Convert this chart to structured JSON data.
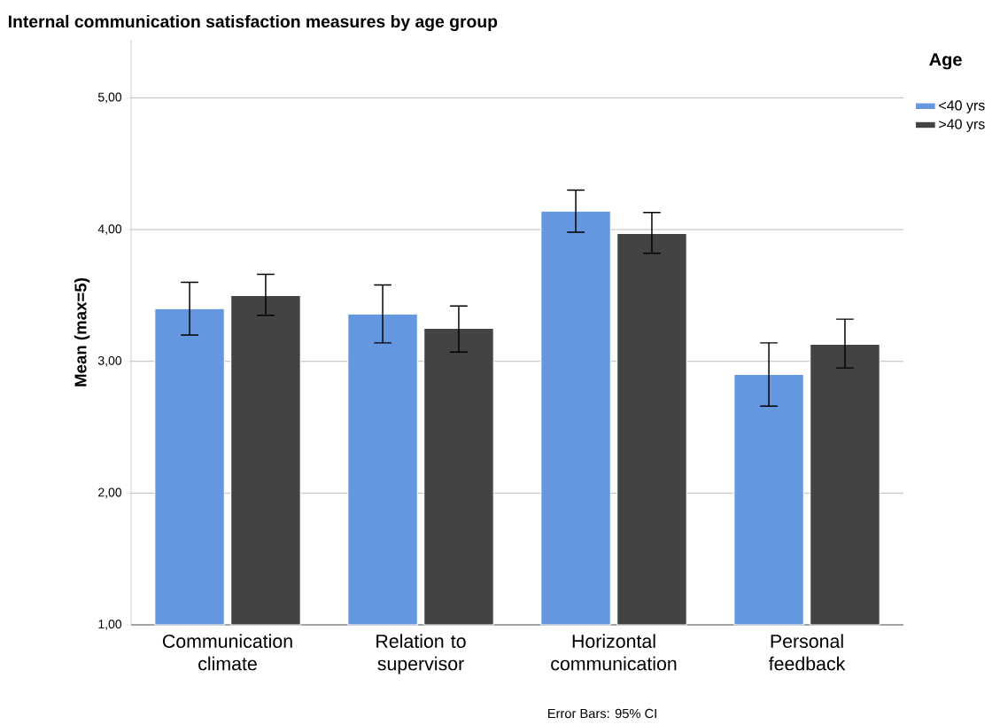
{
  "chart_data": {
    "type": "bar",
    "title": "Internal communication satisfaction measures by age group",
    "ylabel": "Mean (max=5)",
    "legend_title": "Age",
    "categories": [
      "Communication climate",
      "Relation to supervisor",
      "Horizontal communication",
      "Personal feedback"
    ],
    "series": [
      {
        "name": "<40 yrs",
        "color": "#6497e0",
        "values": [
          3.4,
          3.36,
          4.14,
          2.9
        ],
        "errors": [
          [
            3.2,
            3.6
          ],
          [
            3.14,
            3.58
          ],
          [
            3.98,
            4.3
          ],
          [
            2.66,
            3.14
          ]
        ]
      },
      {
        "name": ">40 yrs",
        "color": "#424345",
        "values": [
          3.5,
          3.25,
          3.97,
          3.13
        ],
        "errors": [
          [
            3.35,
            3.66
          ],
          [
            3.07,
            3.42
          ],
          [
            3.82,
            4.13
          ],
          [
            2.95,
            3.32
          ]
        ]
      }
    ],
    "ylim": [
      1,
      5.44
    ],
    "yticks": [
      {
        "value": 1,
        "label": "1,00"
      },
      {
        "value": 2,
        "label": "2,00"
      },
      {
        "value": 3,
        "label": "3,00"
      },
      {
        "value": 4,
        "label": "4,00"
      },
      {
        "value": 5,
        "label": "5,00"
      }
    ],
    "grid": "y",
    "legend": "top right",
    "annotations": [
      "Error Bars: 95% CI"
    ]
  }
}
